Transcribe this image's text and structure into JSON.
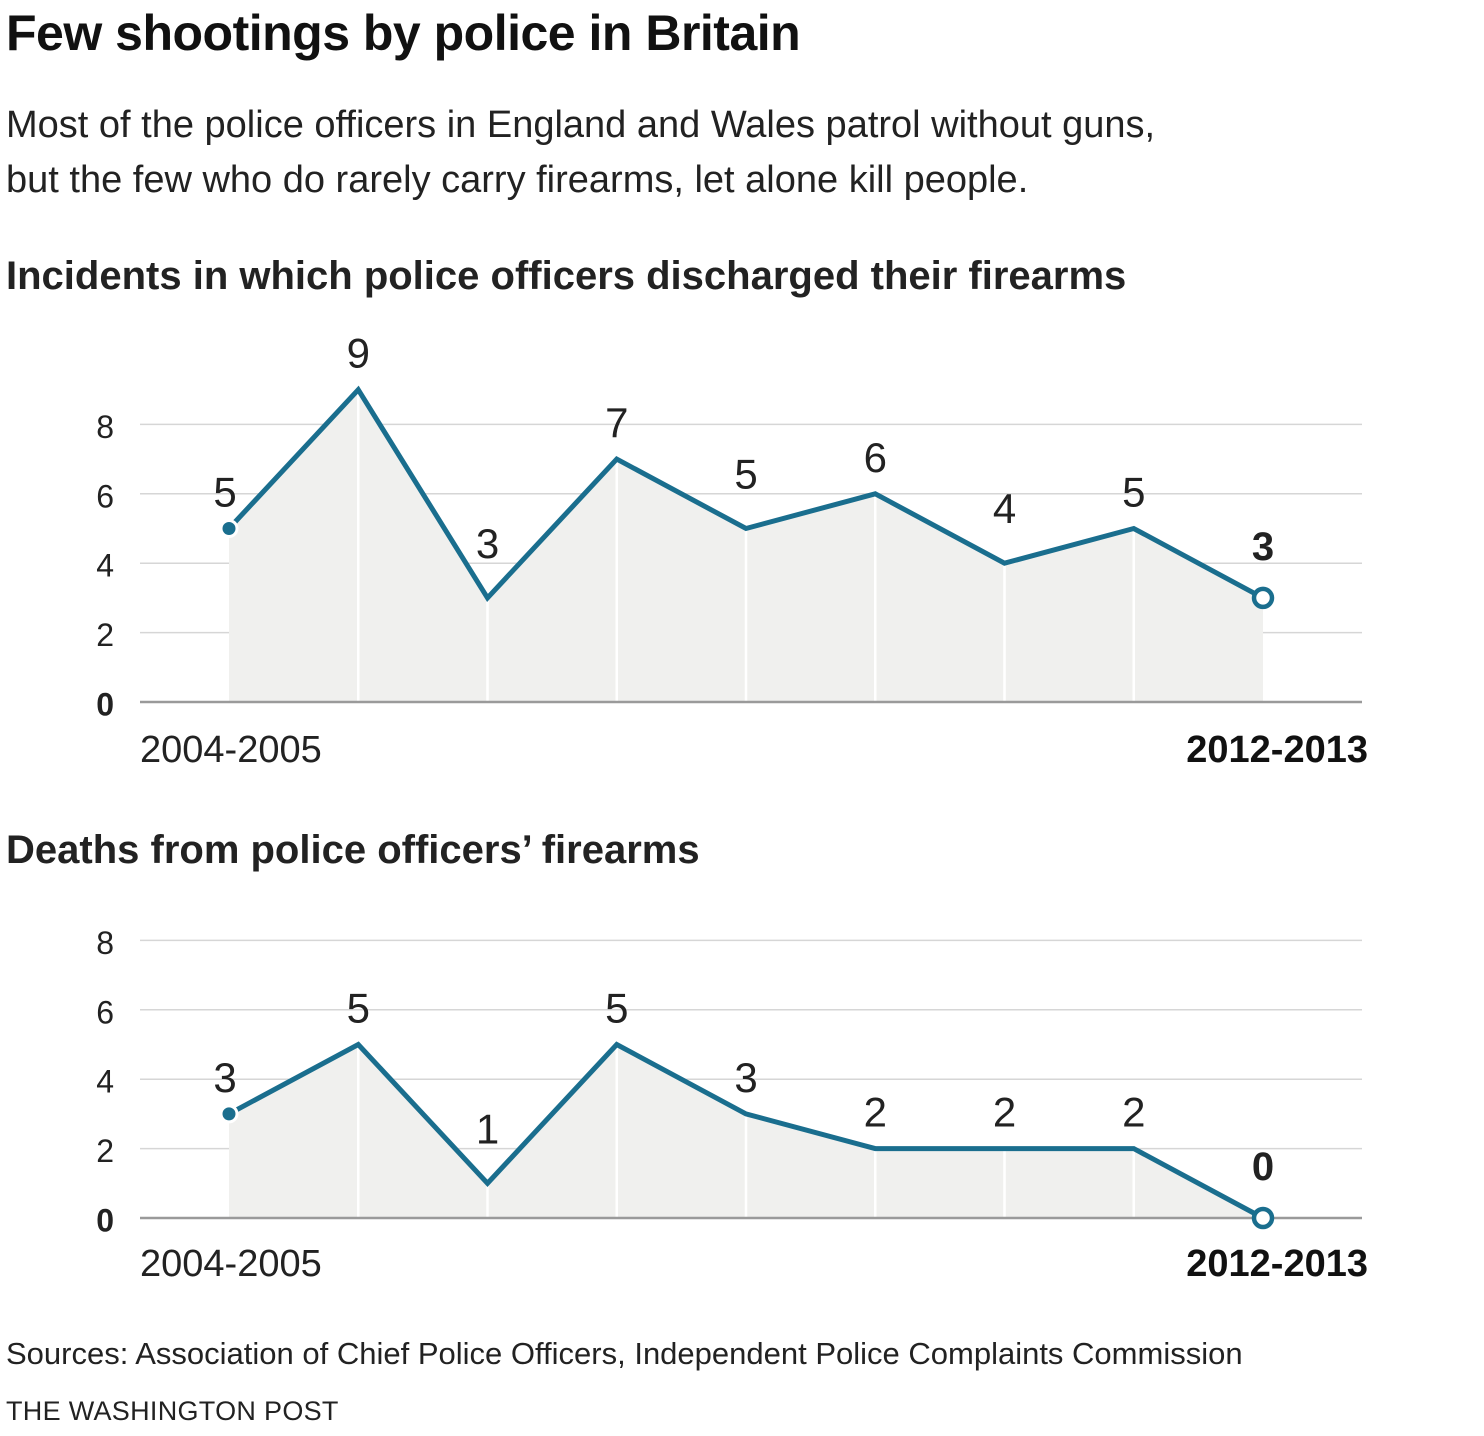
{
  "header": {
    "title": "Few shootings by police in Britain",
    "subtitle_line1": "Most of the police officers in England and Wales patrol without guns,",
    "subtitle_line2": "but the few who do rarely carry firearms, let alone kill people."
  },
  "chart_data": [
    {
      "type": "area",
      "title": "Incidents in which police officers discharged their firearms",
      "x_start_label": "2004-2005",
      "x_end_label": "2012-2013",
      "values": [
        5,
        9,
        3,
        7,
        5,
        6,
        4,
        5,
        3
      ],
      "ylim": [
        0,
        9
      ],
      "y_ticks": [
        0,
        2,
        4,
        6,
        8
      ],
      "grid": true,
      "line_color": "#1a6e8e",
      "fill_color": "#f0f0ee"
    },
    {
      "type": "area",
      "title": "Deaths from police officers’ firearms",
      "x_start_label": "2004-2005",
      "x_end_label": "2012-2013",
      "values": [
        3,
        5,
        1,
        5,
        3,
        2,
        2,
        2,
        0
      ],
      "ylim": [
        0,
        9
      ],
      "y_ticks": [
        0,
        2,
        4,
        6,
        8
      ],
      "grid": true,
      "line_color": "#1a6e8e",
      "fill_color": "#f0f0ee"
    }
  ],
  "footer": {
    "source": "Sources: Association of Chief Police Officers, Independent Police Complaints Commission",
    "credit": "THE WASHINGTON POST"
  }
}
